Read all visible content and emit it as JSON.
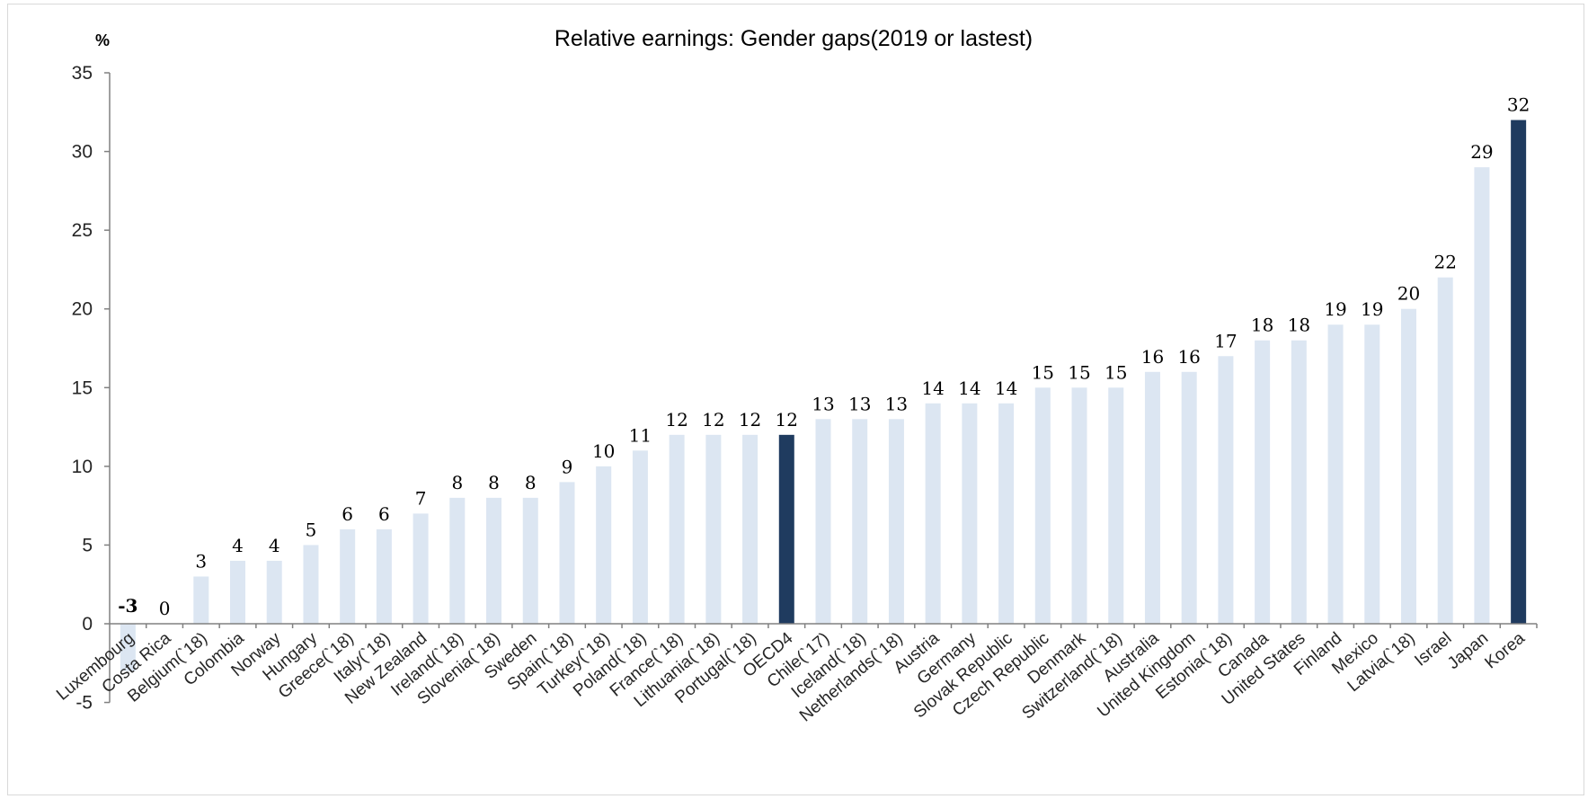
{
  "chart_data": {
    "type": "bar",
    "title": "Relative earnings: Gender gaps(2019  or lastest)",
    "ylabel": "%",
    "xlabel": "",
    "ylim": [
      -5,
      35
    ],
    "yticks": [
      -5,
      0,
      5,
      10,
      15,
      20,
      25,
      30,
      35
    ],
    "grid": false,
    "legend": "none",
    "colors": {
      "default": "#dce6f2",
      "highlight": "#1f3b5f"
    },
    "highlighted": [
      "OECD4",
      "Korea"
    ],
    "categories": [
      "Luxembourg",
      "Costa Rica",
      "Belgium(`18)",
      "Colombia",
      "Norway",
      "Hungary",
      "Greece(`18)",
      "Italy(`18)",
      "New Zealand",
      "Ireland(`18)",
      "Slovenia(`18)",
      "Sweden",
      "Spain(`18)",
      "Turkey(`18)",
      "Poland(`18)",
      "France(`18)",
      "Lithuania(`18)",
      "Portugal(`18)",
      "OECD4",
      "Chile(`17)",
      "Iceland(`18)",
      "Netherlands(`18)",
      "Austria",
      "Germany",
      "Slovak Republic",
      "Czech Republic",
      "Denmark",
      "Switzerland(`18)",
      "Australia",
      "United Kingdom",
      "Estonia(`18)",
      "Canada",
      "United States",
      "Finland",
      "Mexico",
      "Latvia(`18)",
      "Israel",
      "Japan",
      "Korea"
    ],
    "values": [
      -3,
      0,
      3,
      4,
      4,
      5,
      6,
      6,
      7,
      8,
      8,
      8,
      9,
      10,
      11,
      12,
      12,
      12,
      12,
      13,
      13,
      13,
      14,
      14,
      14,
      15,
      15,
      15,
      16,
      16,
      17,
      18,
      18,
      19,
      19,
      20,
      22,
      29,
      32
    ]
  }
}
